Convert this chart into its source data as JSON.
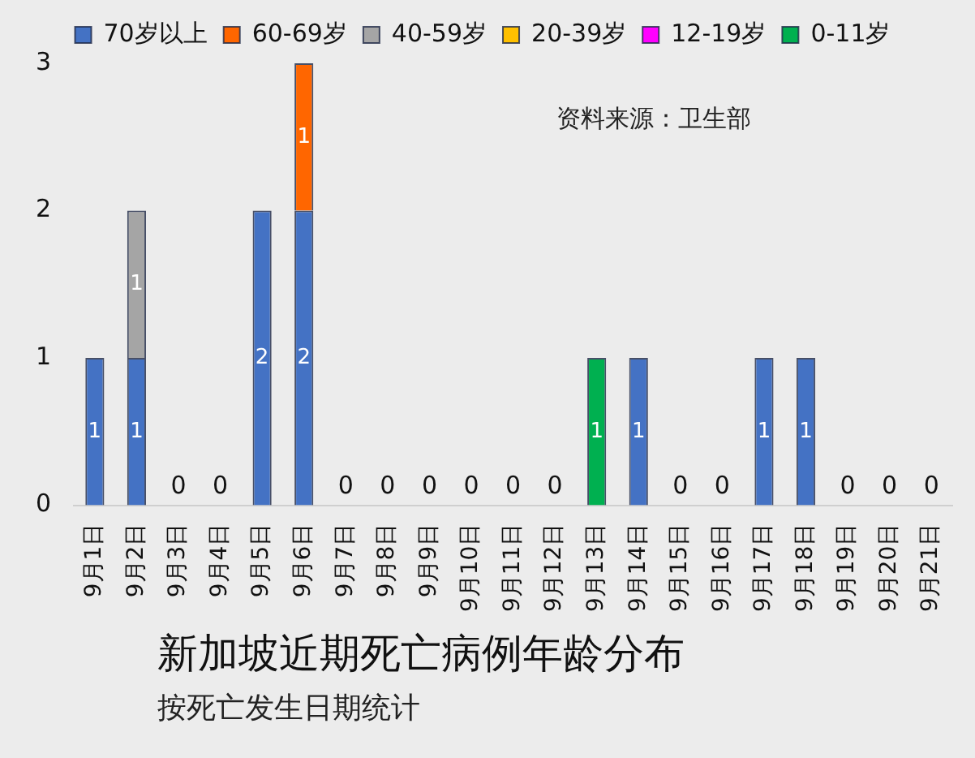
{
  "chart_data": {
    "type": "bar",
    "title": "新加坡近期死亡病例年龄分布",
    "subtitle": "按死亡发生日期统计",
    "annotations": [
      "资料来源：卫生部"
    ],
    "categories": [
      "9月1日",
      "9月2日",
      "9月3日",
      "9月4日",
      "9月5日",
      "9月6日",
      "9月7日",
      "9月8日",
      "9月9日",
      "9月10日",
      "9月11日",
      "9月12日",
      "9月13日",
      "9月14日",
      "9月15日",
      "9月16日",
      "9月17日",
      "9月18日",
      "9月19日",
      "9月20日",
      "9月21日"
    ],
    "series": [
      {
        "name": "70岁以上",
        "color": "#4472c4",
        "values": [
          1,
          1,
          null,
          null,
          2,
          2,
          null,
          null,
          null,
          null,
          null,
          null,
          null,
          1,
          null,
          null,
          1,
          1,
          null,
          null,
          null
        ]
      },
      {
        "name": "60-69岁",
        "color": "#ff6600",
        "values": [
          null,
          null,
          null,
          null,
          null,
          1,
          null,
          null,
          null,
          null,
          null,
          null,
          null,
          null,
          null,
          null,
          null,
          null,
          null,
          null,
          null
        ]
      },
      {
        "name": "40-59岁",
        "color": "#a5a5a5",
        "values": [
          null,
          1,
          null,
          null,
          null,
          null,
          null,
          null,
          null,
          null,
          null,
          null,
          null,
          null,
          null,
          null,
          null,
          null,
          null,
          null,
          null
        ]
      },
      {
        "name": "20-39岁",
        "color": "#ffc000",
        "values": [
          null,
          null,
          null,
          null,
          null,
          null,
          null,
          null,
          null,
          null,
          null,
          null,
          null,
          null,
          null,
          null,
          null,
          null,
          null,
          null,
          null
        ]
      },
      {
        "name": "12-19岁",
        "color": "#ff00ff",
        "values": [
          null,
          null,
          null,
          null,
          null,
          null,
          null,
          null,
          null,
          null,
          null,
          null,
          null,
          null,
          null,
          null,
          null,
          null,
          null,
          null,
          null
        ]
      },
      {
        "name": "0-11岁",
        "color": "#00b050",
        "values": [
          null,
          null,
          null,
          null,
          null,
          null,
          null,
          null,
          null,
          null,
          null,
          null,
          1,
          null,
          null,
          null,
          null,
          null,
          null,
          null,
          null
        ]
      }
    ],
    "stacked": true,
    "data_labels": true,
    "totals": [
      null,
      null,
      "0",
      "0",
      null,
      null,
      "0",
      "0",
      "0",
      "0",
      "0",
      "0",
      null,
      null,
      "0",
      "0",
      null,
      null,
      "0",
      "0",
      "0"
    ],
    "ylim": [
      0,
      3
    ],
    "yticks": [
      0,
      1,
      2,
      3
    ],
    "legend": "top"
  }
}
